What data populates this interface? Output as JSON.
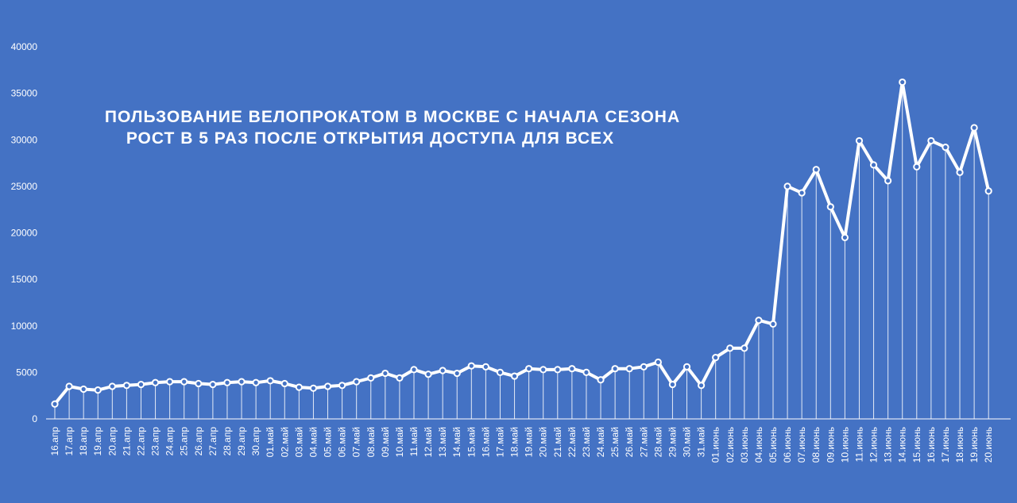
{
  "chart_data": {
    "type": "line",
    "title_lines": [
      "ПОЛЬЗОВАНИЕ ВЕЛОПРОКАТОМ В МОСКВЕ С НАЧАЛА СЕЗОНА",
      "РОСТ В 5 РАЗ ПОСЛЕ ОТКРЫТИЯ ДОСТУПА ДЛЯ ВСЕХ"
    ],
    "xlabel": "",
    "ylabel": "",
    "ylim": [
      0,
      40000
    ],
    "yticks": [
      0,
      5000,
      10000,
      15000,
      20000,
      25000,
      30000,
      35000,
      40000
    ],
    "grid": false,
    "drop_lines": true,
    "colors": {
      "background": "#4472c4",
      "line": "#ffffff",
      "marker_fill": "#4472c4"
    },
    "categories": [
      "16.апр",
      "17.апр",
      "18.апр",
      "19.апр",
      "20.апр",
      "21.апр",
      "22.апр",
      "23.апр",
      "24.апр",
      "25.апр",
      "26.апр",
      "27.апр",
      "28.апр",
      "29.апр",
      "30.апр",
      "01.май",
      "02.май",
      "03.май",
      "04.май",
      "05.май",
      "06.май",
      "07.май",
      "08.май",
      "09.май",
      "10.май",
      "11.май",
      "12.май",
      "13.май",
      "14.май",
      "15.май",
      "16.май",
      "17.май",
      "18.май",
      "19.май",
      "20.май",
      "21.май",
      "22.май",
      "23.май",
      "24.май",
      "25.май",
      "26.май",
      "27.май",
      "28.май",
      "29.май",
      "30.май",
      "31.май",
      "01.июнь",
      "02.июнь",
      "03.июнь",
      "04.июнь",
      "05.июнь",
      "06.июнь",
      "07.июнь",
      "08.июнь",
      "09.июнь",
      "10.июнь",
      "11.июнь",
      "12.июнь",
      "13.июнь",
      "14.июнь",
      "15.июнь",
      "16.июнь",
      "17.июнь",
      "18.июнь",
      "19.июнь",
      "20.июнь"
    ],
    "values": [
      1600,
      3500,
      3200,
      3100,
      3500,
      3600,
      3700,
      3900,
      4000,
      4000,
      3800,
      3700,
      3900,
      4000,
      3900,
      4100,
      3800,
      3400,
      3300,
      3500,
      3600,
      4000,
      4400,
      4900,
      4400,
      5300,
      4800,
      5200,
      4900,
      5700,
      5600,
      5000,
      4600,
      5400,
      5300,
      5300,
      5400,
      5000,
      4200,
      5400,
      5400,
      5600,
      6100,
      3700,
      5600,
      3600,
      6600,
      7600,
      7600,
      10600,
      10200,
      25000,
      24300,
      26800,
      22800,
      19500,
      29900,
      27300,
      25600,
      36200,
      27100,
      29900,
      29200,
      26500,
      31300,
      24500
    ]
  }
}
